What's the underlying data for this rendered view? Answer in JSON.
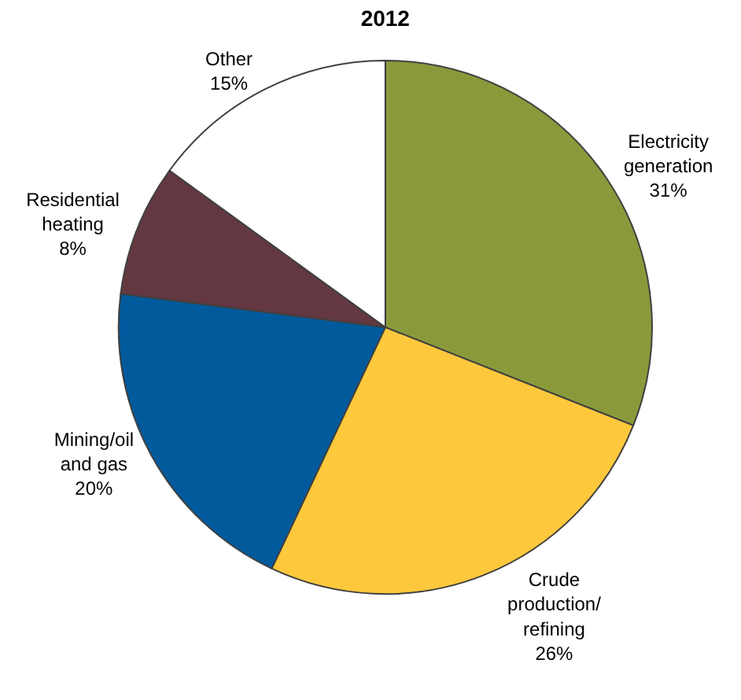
{
  "chart_data": {
    "type": "pie",
    "title": "2012",
    "categories": [
      "Electricity\ngeneration",
      "Crude\nproduction/\nrefining",
      "Mining/oil\nand gas",
      "Residential\nheating",
      "Other"
    ],
    "values": [
      31,
      26,
      20,
      8,
      15
    ],
    "colors": [
      "#8a9a3b",
      "#fdc83c",
      "#005a9c",
      "#633841",
      "#ffffff"
    ],
    "value_labels": [
      "31%",
      "26%",
      "20%",
      "8%",
      "15%"
    ],
    "legend": false
  }
}
